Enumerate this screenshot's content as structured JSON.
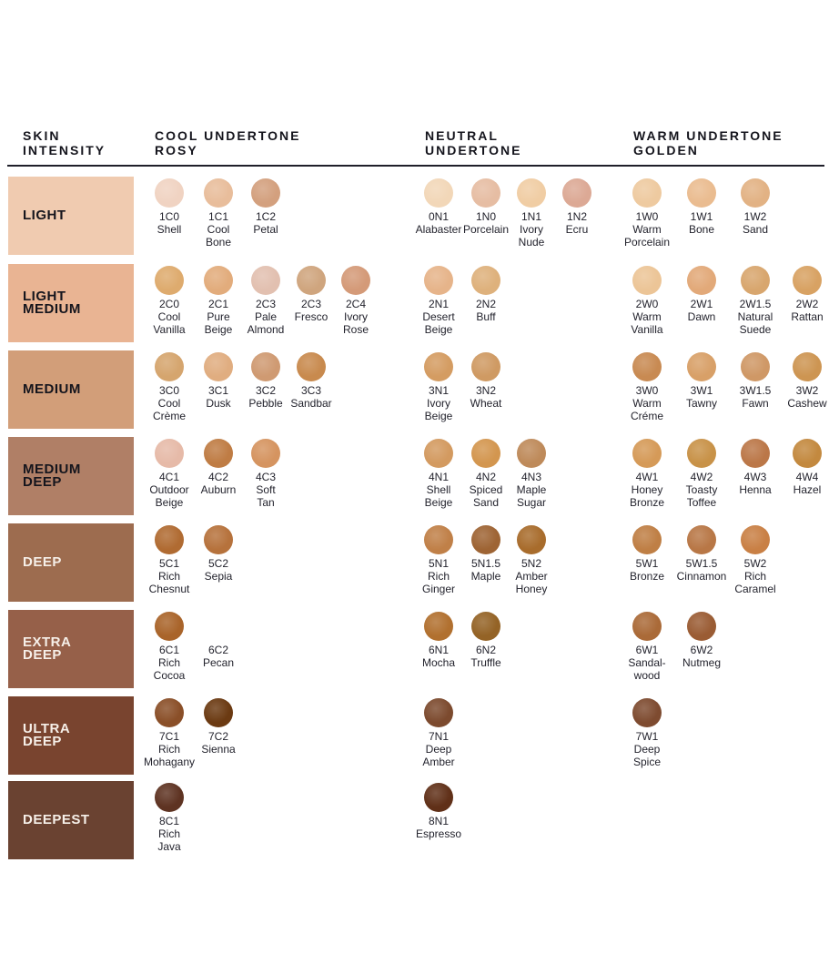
{
  "headers": {
    "intensity": "SKIN\nINTENSITY",
    "cool": "COOL UNDERTONE\nROSY",
    "neutral": "NEUTRAL\nUNDERTONE",
    "warm": "WARM UNDERTONE\nGOLDEN"
  },
  "rows": [
    {
      "label": "LIGHT",
      "color": "#f0cbb0",
      "text_color": "#15151d",
      "cool": [
        {
          "code": "1C0",
          "name": "Shell",
          "color": "#f0d3c2"
        },
        {
          "code": "1C1",
          "name": "Cool\nBone",
          "color": "#e8bd9b"
        },
        {
          "code": "1C2",
          "name": "Petal",
          "color": "#d3a07e"
        }
      ],
      "neutral": [
        {
          "code": "0N1",
          "name": "Alabaster",
          "color": "#f2d7b8"
        },
        {
          "code": "1N0",
          "name": "Porcelain",
          "color": "#e6bda3"
        },
        {
          "code": "1N1",
          "name": "Ivory\nNude",
          "color": "#f0cda4"
        },
        {
          "code": "1N2",
          "name": "Ecru",
          "color": "#dca995"
        }
      ],
      "warm": [
        {
          "code": "1W0",
          "name": "Warm\nPorcelain",
          "color": "#eecaa0"
        },
        {
          "code": "1W1",
          "name": "Bone",
          "color": "#eabc90"
        },
        {
          "code": "1W2",
          "name": "Sand",
          "color": "#e2b284"
        }
      ]
    },
    {
      "label": "LIGHT\nMEDIUM",
      "color": "#e9b493",
      "text_color": "#15151d",
      "cool": [
        {
          "code": "2C0",
          "name": "Cool\nVanilla",
          "color": "#deab6e"
        },
        {
          "code": "2C1",
          "name": "Pure\nBeige",
          "color": "#e2ac7c"
        },
        {
          "code": "2C3",
          "name": "Pale\nAlmond",
          "color": "#e2c0b0"
        },
        {
          "code": "2C3",
          "name": "Fresco",
          "color": "#cfa57e"
        },
        {
          "code": "2C4",
          "name": "Ivory\nRose",
          "color": "#d49a78"
        }
      ],
      "neutral": [
        {
          "code": "2N1",
          "name": "Desert\nBeige",
          "color": "#e6b48a"
        },
        {
          "code": "2N2",
          "name": "Buff",
          "color": "#deb17c"
        }
      ],
      "warm": [
        {
          "code": "2W0",
          "name": "Warm\nVanilla",
          "color": "#ecc597"
        },
        {
          "code": "2W1",
          "name": "Dawn",
          "color": "#e2a979"
        },
        {
          "code": "2W1.5",
          "name": "Natural\nSuede",
          "color": "#d8a66e"
        },
        {
          "code": "2W2",
          "name": "Rattan",
          "color": "#d8a263"
        }
      ]
    },
    {
      "label": "MEDIUM",
      "color": "#d29e79",
      "text_color": "#15151d",
      "cool": [
        {
          "code": "3C0",
          "name": "Cool\nCrème",
          "color": "#d5a56e"
        },
        {
          "code": "3C1",
          "name": "Dusk",
          "color": "#e0ad80"
        },
        {
          "code": "3C2",
          "name": "Pebble",
          "color": "#cf9a72"
        },
        {
          "code": "3C3",
          "name": "Sandbar",
          "color": "#c88a4e"
        }
      ],
      "neutral": [
        {
          "code": "3N1",
          "name": "Ivory\nBeige",
          "color": "#d49c62"
        },
        {
          "code": "3N2",
          "name": "Wheat",
          "color": "#cf9a63"
        }
      ],
      "warm": [
        {
          "code": "3W0",
          "name": "Warm\nCréme",
          "color": "#c88a52"
        },
        {
          "code": "3W1",
          "name": "Tawny",
          "color": "#d8a068"
        },
        {
          "code": "3W1.5",
          "name": "Fawn",
          "color": "#cf9866"
        },
        {
          "code": "3W2",
          "name": "Cashew",
          "color": "#cd9552"
        }
      ]
    },
    {
      "label": "MEDIUM\nDEEP",
      "color": "#b07f66",
      "text_color": "#15151d",
      "cool": [
        {
          "code": "4C1",
          "name": "Outdoor\nBeige",
          "color": "#e6baa8"
        },
        {
          "code": "4C2",
          "name": "Auburn",
          "color": "#bf7c44"
        },
        {
          "code": "4C3",
          "name": "Soft\nTan",
          "color": "#d59460"
        }
      ],
      "neutral": [
        {
          "code": "4N1",
          "name": "Shell\nBeige",
          "color": "#d39a60"
        },
        {
          "code": "4N2",
          "name": "Spiced\nSand",
          "color": "#d3964f"
        },
        {
          "code": "4N3",
          "name": "Maple\nSugar",
          "color": "#be8a5a"
        }
      ],
      "warm": [
        {
          "code": "4W1",
          "name": "Honey\nBronze",
          "color": "#d59a58"
        },
        {
          "code": "4W2",
          "name": "Toasty\nToffee",
          "color": "#c89248"
        },
        {
          "code": "4W3",
          "name": "Henna",
          "color": "#bb7748"
        },
        {
          "code": "4W4",
          "name": "Hazel",
          "color": "#c3893f"
        }
      ]
    },
    {
      "label": "DEEP",
      "color": "#9d6c4f",
      "text_color": "#f6efe8",
      "cool": [
        {
          "code": "5C1",
          "name": "Rich\nChesnut",
          "color": "#b06b32"
        },
        {
          "code": "5C2",
          "name": "Sepia",
          "color": "#b6723c"
        }
      ],
      "neutral": [
        {
          "code": "5N1",
          "name": "Rich\nGinger",
          "color": "#c08048"
        },
        {
          "code": "5N1.5",
          "name": "Maple",
          "color": "#9e6434"
        },
        {
          "code": "5N2",
          "name": "Amber\nHoney",
          "color": "#a86c2c"
        }
      ],
      "warm": [
        {
          "code": "5W1",
          "name": "Bronze",
          "color": "#bf7f45"
        },
        {
          "code": "5W1.5",
          "name": "Cinnamon",
          "color": "#b87746"
        },
        {
          "code": "5W2",
          "name": "Rich\nCaramel",
          "color": "#c98045"
        }
      ]
    },
    {
      "label": "EXTRA\nDEEP",
      "color": "#966049",
      "text_color": "#f6efe8",
      "cool": [
        {
          "code": "6C1",
          "name": "Rich\nCocoa",
          "color": "#a9642a"
        },
        {
          "code": "6C2",
          "name": "Pecan",
          "color": ""
        }
      ],
      "neutral": [
        {
          "code": "6N1",
          "name": "Mocha",
          "color": "#b1702f"
        },
        {
          "code": "6N2",
          "name": "Truffle",
          "color": "#946326"
        }
      ],
      "warm": [
        {
          "code": "6W1",
          "name": "Sandal-\nwood",
          "color": "#aa6a38"
        },
        {
          "code": "6W2",
          "name": "Nutmeg",
          "color": "#9a5c34"
        }
      ]
    },
    {
      "label": "ULTRA\nDEEP",
      "color": "#79442f",
      "text_color": "#f6efe8",
      "cool": [
        {
          "code": "7C1",
          "name": "Rich\nMohagany",
          "color": "#8a4f28"
        },
        {
          "code": "7C2",
          "name": "Sienna",
          "color": "#6b3a12"
        }
      ],
      "neutral": [
        {
          "code": "7N1",
          "name": "Deep\nAmber",
          "color": "#7c4a2e"
        }
      ],
      "warm": [
        {
          "code": "7W1",
          "name": "Deep\nSpice",
          "color": "#7e4b30"
        }
      ]
    },
    {
      "label": "DEEPEST",
      "color": "#6a4231",
      "text_color": "#f6efe8",
      "cool": [
        {
          "code": "8C1",
          "name": "Rich\nJava",
          "color": "#5e3322"
        }
      ],
      "neutral": [
        {
          "code": "8N1",
          "name": "Espresso",
          "color": "#603018"
        }
      ],
      "warm": []
    }
  ]
}
